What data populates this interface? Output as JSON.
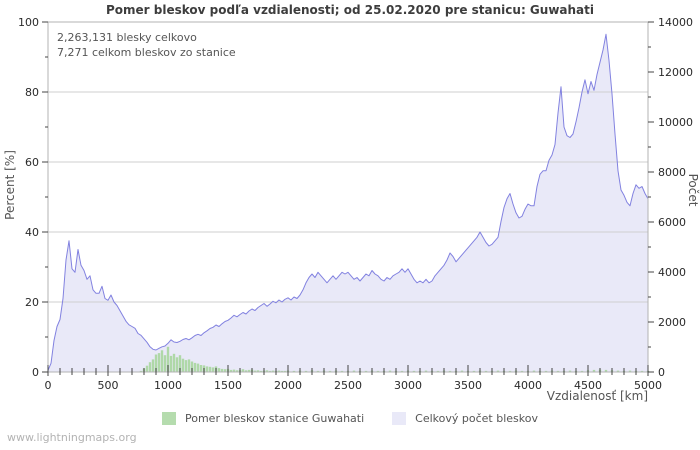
{
  "watermark": "www.lightningmaps.org",
  "annotation": {
    "line1": "2,263,131 blesky celkovo",
    "line2": "7,271 celkom bleskov zo stanice"
  },
  "chart_data": {
    "type": "area",
    "title": "Pomer bleskov podľa vzdialenosti; od 25.02.2020 pre stanicu: Guwahati",
    "xlabel": "Vzdialenosť  [km]",
    "ylabel_left": "Percent  [%]",
    "ylabel_right": "Počet",
    "xlim": [
      0,
      5000
    ],
    "ylim_left": [
      0,
      100
    ],
    "ylim_right": [
      0,
      14000
    ],
    "x_major_ticks": [
      0,
      500,
      1000,
      1500,
      2000,
      2500,
      3000,
      3500,
      4000,
      4500,
      5000
    ],
    "x_minor_step": 100,
    "y_left_ticks": [
      0,
      20,
      40,
      60,
      80,
      100
    ],
    "y_left_minor_step": 10,
    "y_right_ticks": [
      0,
      2000,
      4000,
      6000,
      8000,
      10000,
      12000,
      14000
    ],
    "y_right_minor_step": 1000,
    "grid": "horizontal-major-only",
    "colors": {
      "line": "#8282e0",
      "fill": "#e9e9f8",
      "bars": "#afd8a8",
      "gridline": "#cfcfcf",
      "frame": "#b3b3b3",
      "tick": "#444444",
      "tick_label": "#2a2a2a",
      "axis_title": "#555555"
    },
    "legend": [
      {
        "label": "Pomer bleskov stanice Guwahati",
        "color": "#b5dcae"
      },
      {
        "label": "Celkový počet bleskov",
        "color": "#e9e9f8"
      }
    ],
    "series": [
      {
        "name": "Celkový počet bleskov",
        "axis": "right",
        "style": "area-line",
        "x_start": 0,
        "x_step": 25,
        "values": [
          70,
          350,
          1260,
          1820,
          2100,
          2940,
          4480,
          5250,
          4130,
          3990,
          4900,
          4270,
          4060,
          3710,
          3850,
          3290,
          3150,
          3150,
          3430,
          2940,
          2870,
          3080,
          2800,
          2660,
          2450,
          2240,
          2030,
          1890,
          1820,
          1750,
          1540,
          1470,
          1330,
          1190,
          1010,
          910,
          880,
          950,
          1010,
          1040,
          1150,
          1290,
          1200,
          1180,
          1230,
          1300,
          1340,
          1290,
          1370,
          1460,
          1510,
          1460,
          1570,
          1650,
          1740,
          1790,
          1880,
          1820,
          1930,
          2020,
          2070,
          2160,
          2270,
          2210,
          2300,
          2380,
          2320,
          2440,
          2520,
          2460,
          2580,
          2660,
          2740,
          2630,
          2720,
          2830,
          2770,
          2880,
          2800,
          2910,
          2970,
          2880,
          3000,
          2940,
          3080,
          3290,
          3570,
          3780,
          3920,
          3780,
          3990,
          3850,
          3710,
          3570,
          3710,
          3850,
          3710,
          3850,
          3990,
          3920,
          3990,
          3850,
          3710,
          3780,
          3640,
          3780,
          3920,
          3850,
          4060,
          3920,
          3850,
          3710,
          3640,
          3780,
          3710,
          3850,
          3920,
          3990,
          4130,
          3990,
          4130,
          3920,
          3710,
          3570,
          3640,
          3570,
          3710,
          3570,
          3640,
          3850,
          3990,
          4130,
          4270,
          4480,
          4760,
          4620,
          4410,
          4550,
          4690,
          4830,
          4970,
          5110,
          5250,
          5390,
          5600,
          5390,
          5180,
          5040,
          5110,
          5250,
          5390,
          6020,
          6580,
          6930,
          7140,
          6720,
          6370,
          6160,
          6230,
          6510,
          6720,
          6650,
          6650,
          7420,
          7910,
          8050,
          8050,
          8470,
          8680,
          9100,
          10360,
          11410,
          9800,
          9450,
          9380,
          9520,
          10010,
          10570,
          11200,
          11690,
          11130,
          11620,
          11270,
          11900,
          12390,
          12880,
          13510,
          12460,
          11130,
          9520,
          8050,
          7280,
          7070,
          6790,
          6650,
          7140,
          7490,
          7350,
          7420,
          7140,
          6930
        ]
      },
      {
        "name": "Pomer bleskov stanice Guwahati",
        "axis": "left",
        "style": "bars",
        "points": [
          [
            775,
            0.3
          ],
          [
            800,
            1.0
          ],
          [
            825,
            1.8
          ],
          [
            850,
            2.8
          ],
          [
            875,
            3.6
          ],
          [
            900,
            5.0
          ],
          [
            925,
            5.4
          ],
          [
            950,
            6.2
          ],
          [
            975,
            4.8
          ],
          [
            1000,
            7.2
          ],
          [
            1025,
            4.6
          ],
          [
            1050,
            5.2
          ],
          [
            1075,
            4.2
          ],
          [
            1100,
            4.8
          ],
          [
            1125,
            3.8
          ],
          [
            1150,
            3.4
          ],
          [
            1175,
            3.6
          ],
          [
            1200,
            3.0
          ],
          [
            1225,
            2.6
          ],
          [
            1250,
            2.4
          ],
          [
            1275,
            2.0
          ],
          [
            1300,
            1.9
          ],
          [
            1325,
            1.6
          ],
          [
            1350,
            1.5
          ],
          [
            1375,
            1.3
          ],
          [
            1400,
            1.6
          ],
          [
            1425,
            1.1
          ],
          [
            1450,
            0.9
          ],
          [
            1475,
            0.8
          ],
          [
            1500,
            0.9
          ],
          [
            1525,
            0.6
          ],
          [
            1550,
            0.7
          ],
          [
            1575,
            0.5
          ],
          [
            1600,
            0.6
          ],
          [
            1625,
            0.8
          ],
          [
            1650,
            0.5
          ],
          [
            1675,
            0.6
          ],
          [
            1700,
            0.7
          ],
          [
            1725,
            0.4
          ],
          [
            1750,
            0.5
          ],
          [
            1775,
            0.3
          ],
          [
            1800,
            0.4
          ],
          [
            1825,
            0.5
          ],
          [
            1850,
            0.3
          ],
          [
            1875,
            0.4
          ],
          [
            1900,
            0.3
          ],
          [
            1925,
            0.4
          ],
          [
            1950,
            0.3
          ],
          [
            1975,
            0.3
          ],
          [
            2000,
            0.4
          ],
          [
            2050,
            0.3
          ],
          [
            2100,
            0.4
          ],
          [
            2150,
            0.3
          ],
          [
            2200,
            0.5
          ],
          [
            2250,
            0.3
          ],
          [
            2300,
            0.4
          ],
          [
            2350,
            0.3
          ],
          [
            2400,
            0.4
          ],
          [
            2450,
            0.3
          ],
          [
            2500,
            0.3
          ],
          [
            2550,
            0.4
          ],
          [
            2600,
            0.3
          ],
          [
            2650,
            0.3
          ],
          [
            2700,
            0.4
          ],
          [
            2750,
            0.3
          ],
          [
            2800,
            0.3
          ],
          [
            2850,
            0.4
          ],
          [
            2900,
            0.3
          ],
          [
            2950,
            0.3
          ],
          [
            3000,
            0.4
          ],
          [
            3050,
            0.3
          ],
          [
            3100,
            0.3
          ],
          [
            3150,
            0.4
          ],
          [
            3200,
            0.3
          ],
          [
            3250,
            0.3
          ],
          [
            3300,
            0.4
          ],
          [
            3350,
            0.3
          ],
          [
            3400,
            0.3
          ],
          [
            3450,
            0.4
          ],
          [
            3500,
            0.3
          ],
          [
            3550,
            0.3
          ],
          [
            3600,
            0.4
          ],
          [
            3650,
            0.3
          ],
          [
            3700,
            0.3
          ],
          [
            3750,
            0.4
          ],
          [
            3800,
            0.3
          ],
          [
            3850,
            0.3
          ],
          [
            3900,
            0.4
          ],
          [
            3950,
            0.3
          ],
          [
            4000,
            0.3
          ],
          [
            4050,
            0.4
          ],
          [
            4100,
            0.3
          ],
          [
            4150,
            0.3
          ],
          [
            4200,
            0.4
          ],
          [
            4250,
            0.3
          ],
          [
            4300,
            0.3
          ],
          [
            4350,
            0.4
          ],
          [
            4400,
            0.3
          ],
          [
            4450,
            0.3
          ],
          [
            4500,
            0.5
          ],
          [
            4550,
            0.6
          ],
          [
            4600,
            0.7
          ],
          [
            4650,
            0.6
          ],
          [
            4700,
            0.5
          ],
          [
            4750,
            0.4
          ],
          [
            4800,
            0.3
          ],
          [
            4850,
            0.4
          ],
          [
            4900,
            0.3
          ],
          [
            4950,
            0.3
          ],
          [
            5000,
            0.3
          ]
        ]
      }
    ]
  }
}
